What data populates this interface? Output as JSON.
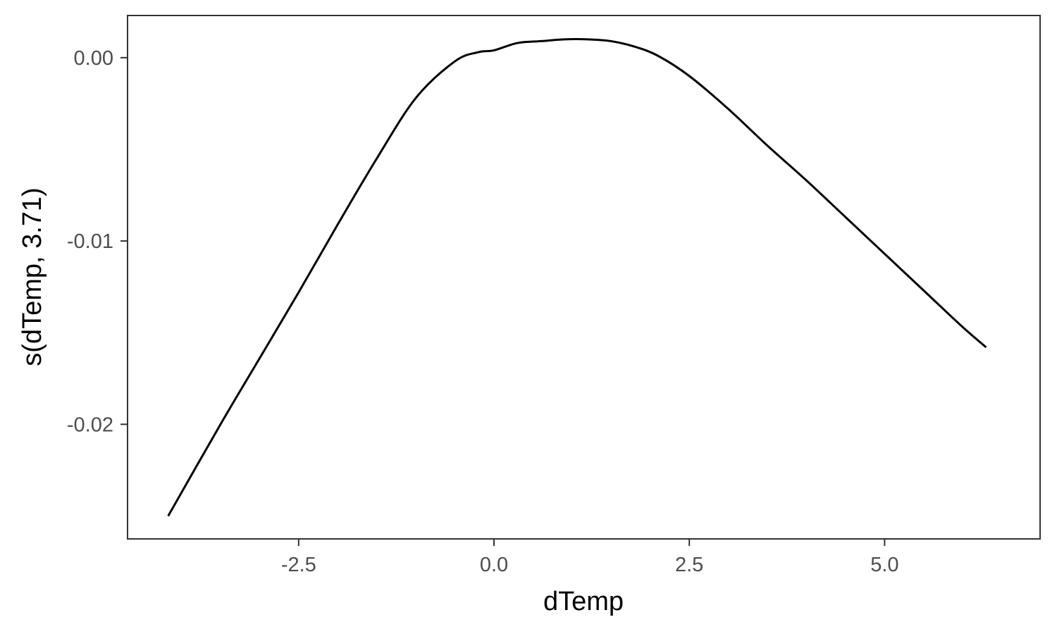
{
  "chart_data": {
    "type": "line",
    "title": "",
    "xlabel": "dTemp",
    "ylabel": "s(dTemp, 3.71)",
    "xlim": [
      -4.69,
      6.99
    ],
    "ylim": [
      -0.02625,
      0.0023
    ],
    "x_ticks": [
      {
        "value": -2.5,
        "label": "-2.5"
      },
      {
        "value": 0.0,
        "label": "0.0"
      },
      {
        "value": 2.5,
        "label": "2.5"
      },
      {
        "value": 5.0,
        "label": "5.0"
      }
    ],
    "y_ticks": [
      {
        "value": 0.0,
        "label": "0.00"
      },
      {
        "value": -0.01,
        "label": "-0.01"
      },
      {
        "value": -0.02,
        "label": "-0.02"
      }
    ],
    "grid": false,
    "legend": "none",
    "colors": {
      "line": "#000000",
      "panel_border": "#333333",
      "tick_text": "#4d4d4d",
      "tick_mark": "#333333"
    },
    "series": [
      {
        "x": [
          -4.17,
          -3.5,
          -3.0,
          -2.5,
          -2.0,
          -1.5,
          -1.0,
          -0.5,
          -0.2,
          0.0,
          0.3,
          0.6,
          0.9,
          1.2,
          1.5,
          1.8,
          2.1,
          2.5,
          3.0,
          3.5,
          4.0,
          4.5,
          5.0,
          5.5,
          6.0,
          6.3
        ],
        "y": [
          -0.025,
          -0.02,
          -0.0164,
          -0.0128,
          -0.0091,
          -0.0055,
          -0.0022,
          -0.0002,
          0.0003,
          0.0004,
          0.0008,
          0.0009,
          0.001,
          0.001,
          0.0009,
          0.0006,
          0.0001,
          -0.001,
          -0.0028,
          -0.0048,
          -0.0067,
          -0.0087,
          -0.0107,
          -0.0127,
          -0.0147,
          -0.0158
        ]
      }
    ]
  }
}
